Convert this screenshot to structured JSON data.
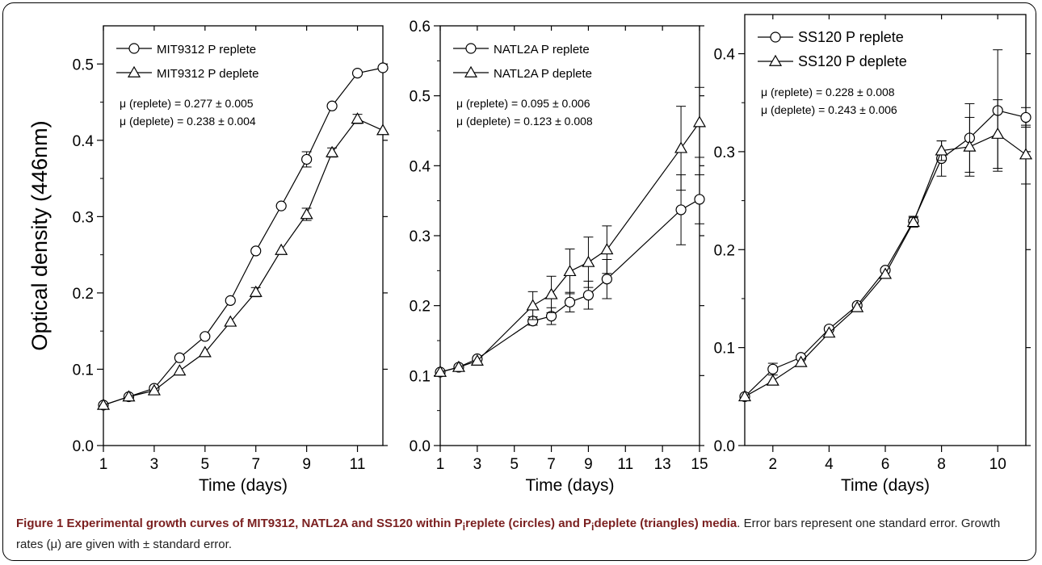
{
  "figure": {
    "ylabel": "Optical density (446nm)",
    "caption": {
      "label": "Figure 1",
      "bold_a": "Experimental growth curves of MIT9312, NATL2A and SS120 within P",
      "bold_sub_i": "i",
      "bold_b": "replete (circles) and P",
      "bold_sub_i2": "i",
      "bold_c": "deplete (triangles) media",
      "rest": ". Error bars represent one standard error. Growth rates (μ) are given with ± standard error."
    }
  },
  "chart_data": [
    {
      "type": "line",
      "xlabel": "Time (days)",
      "xlim": [
        1,
        12
      ],
      "ylim": [
        0,
        0.55
      ],
      "xticks": [
        1,
        3,
        5,
        7,
        9,
        11
      ],
      "yticks": [
        0.0,
        0.1,
        0.2,
        0.3,
        0.4,
        0.5
      ],
      "yticklabels": [
        "0.0",
        "0.1",
        "0.2",
        "0.3",
        "0.4",
        "0.5"
      ],
      "grid": false,
      "legend_placement": "top-left",
      "annotations": [
        "μ (replete) = 0.277 ± 0.005",
        "μ (deplete) = 0.238 ± 0.004"
      ],
      "series": [
        {
          "name": "MIT9312 P replete",
          "marker": "circle",
          "x": [
            1,
            2,
            3,
            4,
            5,
            6,
            7,
            8,
            9,
            10,
            11,
            12
          ],
          "y": [
            0.053,
            0.064,
            0.075,
            0.115,
            0.143,
            0.19,
            0.255,
            0.314,
            0.375,
            0.445,
            0.488,
            0.495
          ],
          "err": [
            0,
            0,
            0,
            0,
            0,
            0,
            0,
            0,
            0.01,
            0,
            0,
            0
          ]
        },
        {
          "name": "MIT9312 P deplete",
          "marker": "triangle",
          "x": [
            1,
            2,
            3,
            4,
            5,
            6,
            7,
            8,
            9,
            10,
            11,
            12
          ],
          "y": [
            0.053,
            0.064,
            0.072,
            0.098,
            0.122,
            0.162,
            0.201,
            0.256,
            0.303,
            0.384,
            0.428,
            0.413
          ],
          "err": [
            0,
            0,
            0,
            0,
            0,
            0,
            0.006,
            0,
            0.008,
            0.006,
            0.006,
            0
          ]
        }
      ]
    },
    {
      "type": "line",
      "xlabel": "Time (days)",
      "xlim": [
        1,
        15
      ],
      "ylim": [
        0,
        0.6
      ],
      "xticks": [
        1,
        3,
        5,
        7,
        9,
        11,
        13,
        15
      ],
      "yticks": [
        0.0,
        0.1,
        0.2,
        0.3,
        0.4,
        0.5,
        0.6
      ],
      "yticklabels": [
        "0.0",
        "0.1",
        "0.2",
        "0.3",
        "0.4",
        "0.5",
        "0.6"
      ],
      "grid": false,
      "legend_placement": "top-left",
      "annotations": [
        "μ (replete) = 0.095 ± 0.006",
        "μ (deplete) = 0.123 ± 0.008"
      ],
      "series": [
        {
          "name": "NATL2A P replete",
          "marker": "circle",
          "x": [
            1,
            2,
            3,
            6,
            7,
            8,
            9,
            10,
            14,
            15
          ],
          "y": [
            0.105,
            0.112,
            0.124,
            0.178,
            0.185,
            0.205,
            0.215,
            0.238,
            0.337,
            0.352
          ],
          "err": [
            0,
            0,
            0,
            0.006,
            0.012,
            0.014,
            0.02,
            0.028,
            0.05,
            0.035
          ]
        },
        {
          "name": "NATL2A P deplete",
          "marker": "triangle",
          "x": [
            1,
            2,
            3,
            6,
            7,
            8,
            9,
            10,
            14,
            15
          ],
          "y": [
            0.105,
            0.112,
            0.121,
            0.2,
            0.216,
            0.249,
            0.262,
            0.28,
            0.425,
            0.462
          ],
          "err": [
            0,
            0,
            0,
            0.02,
            0.026,
            0.032,
            0.036,
            0.034,
            0.06,
            0.05
          ]
        }
      ]
    },
    {
      "type": "line",
      "xlabel": "Time (days)",
      "xlim": [
        1,
        11
      ],
      "ylim": [
        0,
        0.44
      ],
      "xticks": [
        2,
        4,
        6,
        8,
        10
      ],
      "yticks": [
        0.0,
        0.1,
        0.2,
        0.3,
        0.4
      ],
      "yticklabels": [
        "0.0",
        "0.1",
        "0.2",
        "0.3",
        "0.4"
      ],
      "grid": false,
      "legend_placement": "top-left",
      "annotations": [
        "μ (replete) = 0.228 ± 0.008",
        "μ (deplete) = 0.243 ± 0.006"
      ],
      "series": [
        {
          "name": "SS120 P replete",
          "marker": "circle",
          "x": [
            1,
            2,
            3,
            4,
            5,
            6,
            7,
            8,
            9,
            10,
            11
          ],
          "y": [
            0.05,
            0.078,
            0.09,
            0.119,
            0.143,
            0.179,
            0.229,
            0.293,
            0.314,
            0.342,
            0.335
          ],
          "err": [
            0,
            0.006,
            0,
            0,
            0,
            0,
            0.005,
            0.018,
            0.035,
            0.062,
            0.01
          ]
        },
        {
          "name": "SS120 P deplete",
          "marker": "triangle",
          "x": [
            1,
            2,
            3,
            4,
            5,
            6,
            7,
            8,
            9,
            10,
            11
          ],
          "y": [
            0.05,
            0.066,
            0.085,
            0.115,
            0.141,
            0.175,
            0.228,
            0.301,
            0.305,
            0.318,
            0.297
          ],
          "err": [
            0,
            0,
            0,
            0,
            0,
            0,
            0.005,
            0.01,
            0.03,
            0.035,
            0.03
          ]
        }
      ]
    }
  ]
}
